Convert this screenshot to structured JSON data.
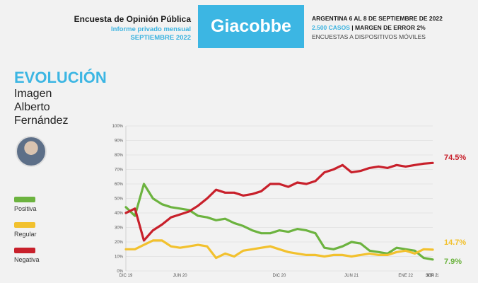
{
  "header": {
    "title": "Encuesta de Opinión Pública",
    "subtitle": "Informe privado mensual",
    "period": "SEPTIEMBRE 2022",
    "brand": "Giacobbe",
    "info_line1": "ARGENTINA 6 AL 8 DE SEPTIEMBRE DE 2022",
    "info_cases": "2.500 CASOS",
    "info_error": "| MARGEN DE ERROR 2%",
    "info_line3": "ENCUESTAS A DISPOSITIVOS MÓVILES"
  },
  "left": {
    "evolution": "EVOLUCIÓN",
    "line1": "Imagen",
    "line2": "Alberto",
    "line3": "Fernández"
  },
  "legend": [
    {
      "label": "Positiva",
      "color": "#6cb33f"
    },
    {
      "label": "Regular",
      "color": "#f2c12e"
    },
    {
      "label": "Negativa",
      "color": "#c8202b"
    }
  ],
  "end_labels": {
    "negativa": "74.5%",
    "regular": "14.7%",
    "positiva": "7.9%"
  },
  "chart_data": {
    "type": "line",
    "title": "Evolución Imagen Alberto Fernández",
    "ylim": [
      0,
      100
    ],
    "yticks": [
      "0%",
      "10%",
      "20%",
      "30%",
      "40%",
      "50%",
      "60%",
      "70%",
      "80%",
      "90%",
      "100%"
    ],
    "xtick_labels": [
      "DIC 19",
      "JUN 20",
      "DIC 20",
      "JUN 21",
      "ENE 22",
      "JUN 22",
      "SEP 22"
    ],
    "xtick_index": [
      0,
      6,
      17,
      25,
      31,
      36,
      38
    ],
    "series": [
      {
        "name": "Positiva",
        "color": "#6cb33f",
        "values": [
          44,
          38,
          60,
          50,
          46,
          44,
          43,
          42,
          38,
          37,
          35,
          36,
          33,
          31,
          28,
          26,
          26,
          28,
          27,
          29,
          28,
          26,
          16,
          15,
          17,
          20,
          19,
          14,
          13,
          12,
          16,
          15,
          14,
          9,
          7.9
        ]
      },
      {
        "name": "Regular",
        "color": "#f2c12e",
        "values": [
          15,
          15,
          18,
          21,
          21,
          17,
          16,
          17,
          18,
          17,
          9,
          12,
          10,
          14,
          15,
          16,
          17,
          15,
          13,
          12,
          11,
          11,
          10,
          11,
          11,
          10,
          11,
          12,
          11,
          11,
          13,
          14,
          12,
          15,
          14.7
        ]
      },
      {
        "name": "Negativa",
        "color": "#c8202b",
        "values": [
          40,
          43,
          21,
          28,
          32,
          37,
          39,
          41,
          45,
          50,
          56,
          54,
          54,
          52,
          53,
          55,
          60,
          60,
          58,
          61,
          60,
          62,
          68,
          70,
          73,
          68,
          69,
          71,
          72,
          71,
          73,
          72,
          73,
          74,
          74.5
        ]
      }
    ]
  }
}
